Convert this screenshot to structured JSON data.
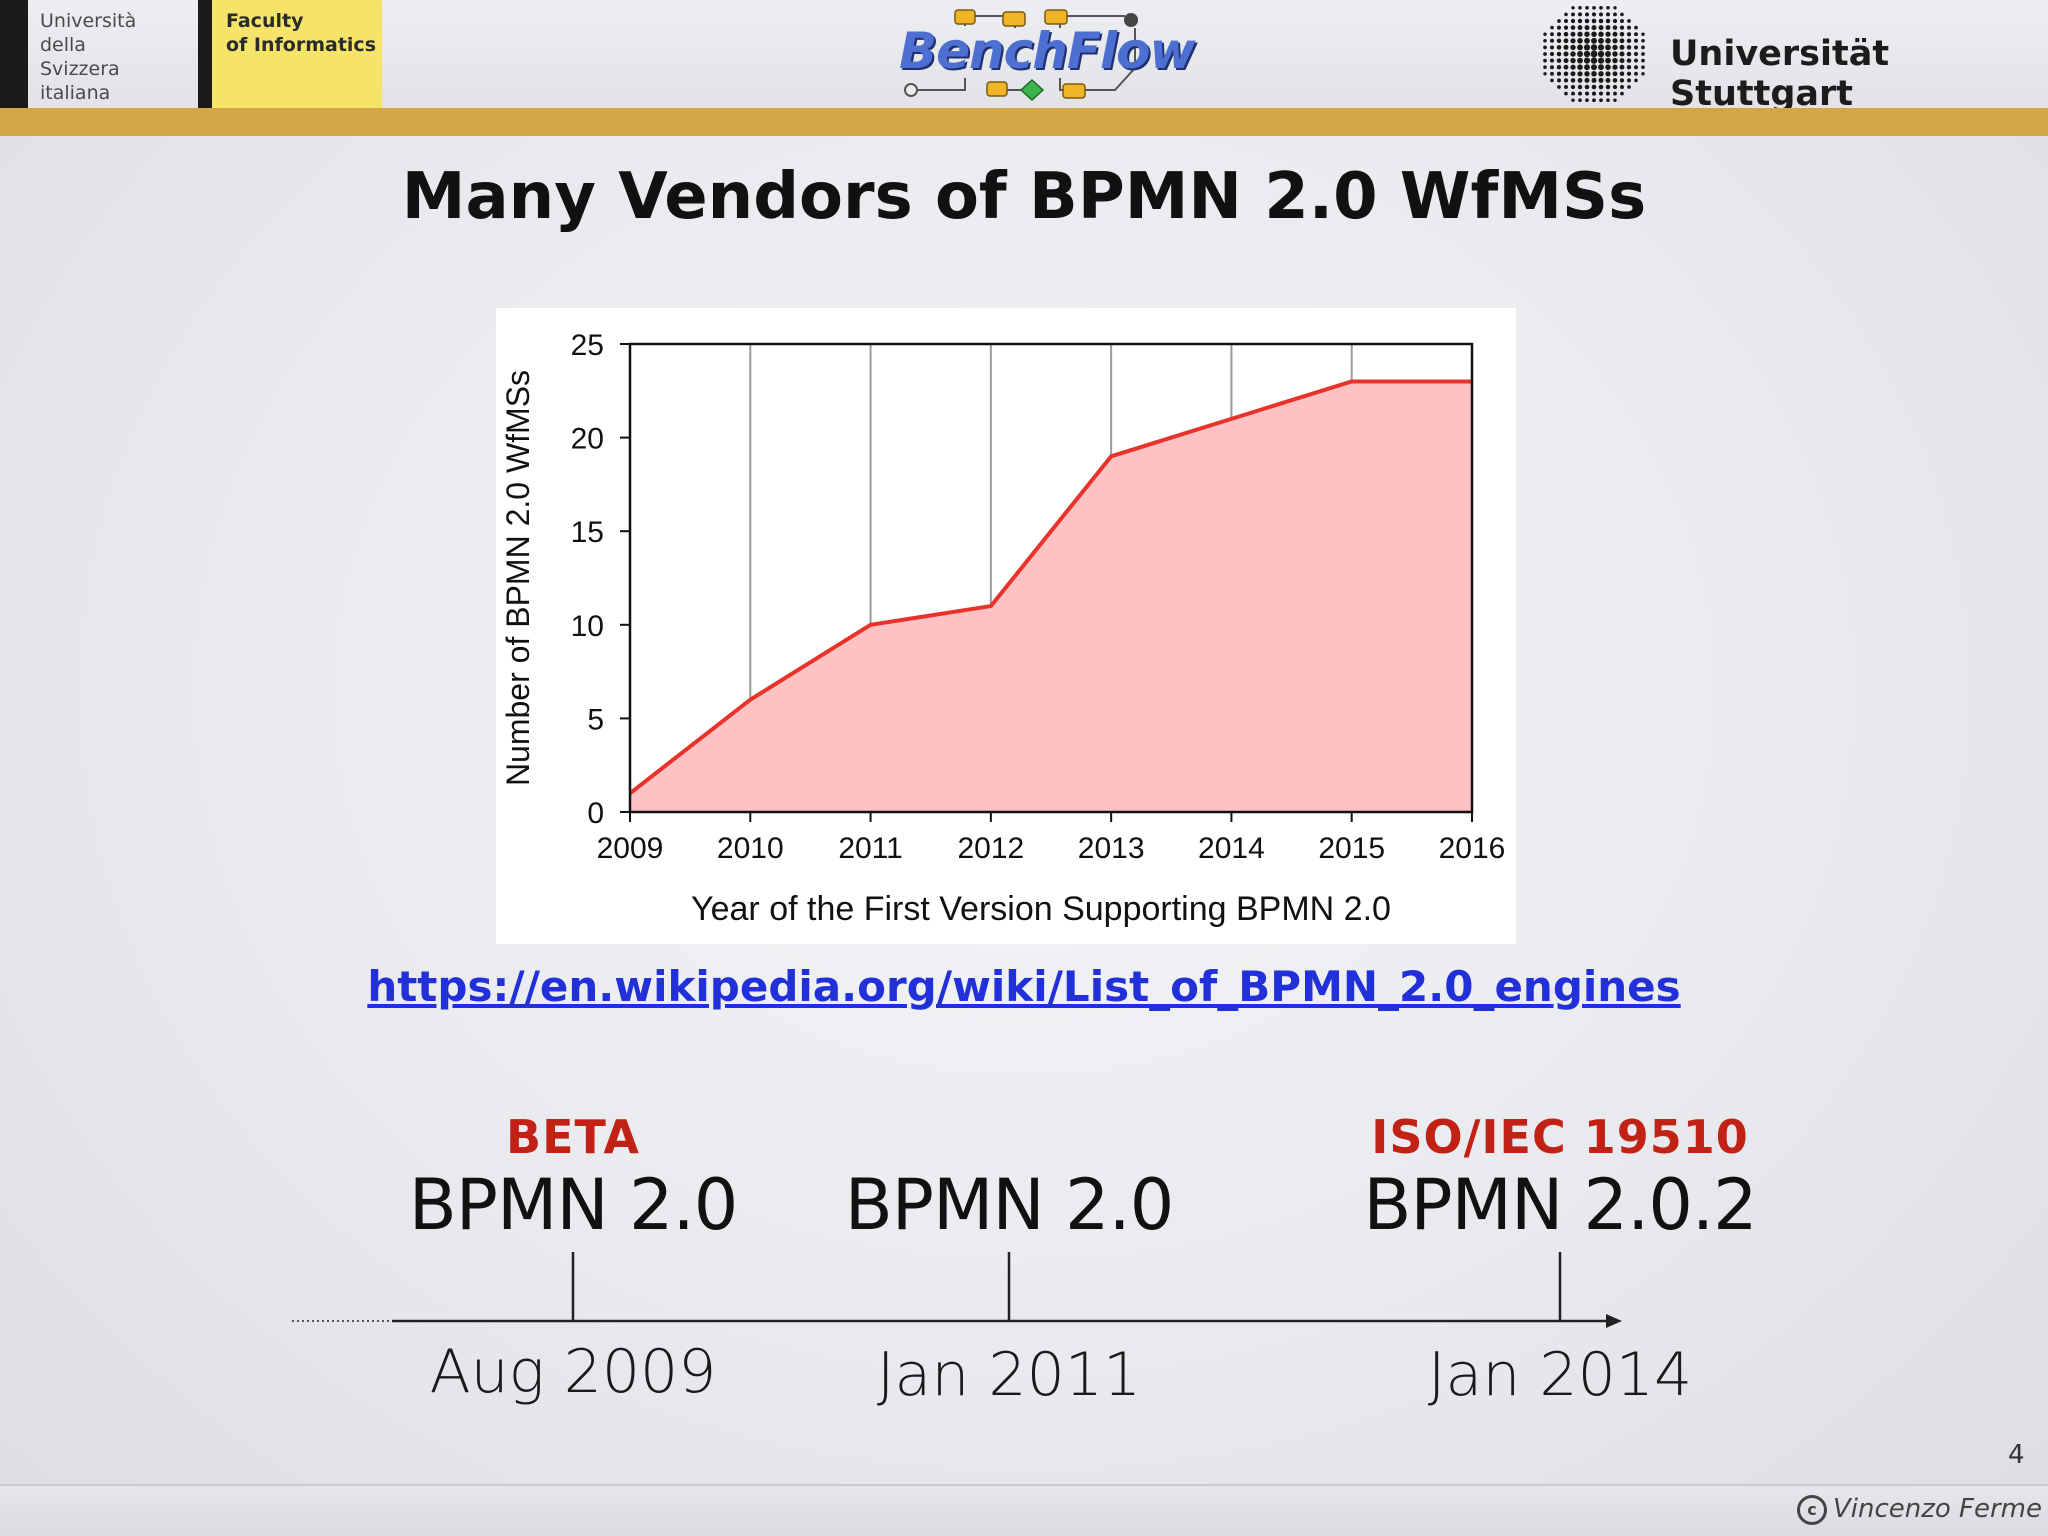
{
  "header": {
    "usi_lines": [
      "Università",
      "della",
      "Svizzera",
      "italiana"
    ],
    "faculty_lines": [
      "Faculty",
      "of Informatics"
    ],
    "benchflow_logo_text": "BenchFlow",
    "stuttgart_name": "Universität Stuttgart"
  },
  "slide": {
    "title": "Many Vendors of BPMN 2.0 WfMSs",
    "link": "https://en.wikipedia.org/wiki/List_of_BPMN_2.0_engines",
    "page_number": "4",
    "author": "Vincenzo Ferme"
  },
  "timeline": [
    {
      "badge": "BETA",
      "version": "BPMN 2.0",
      "date": "Aug 2009"
    },
    {
      "badge": "",
      "version": "BPMN 2.0",
      "date": "Jan 2011"
    },
    {
      "badge": "ISO/IEC 19510",
      "version": "BPMN 2.0.2",
      "date": "Jan 2014"
    }
  ],
  "colors": {
    "gold": "#d3a748",
    "badge_red": "#c22116",
    "link_blue": "#2230d9",
    "line": "#e8332b",
    "fill": "#ffc2c4"
  },
  "chart_data": {
    "type": "area",
    "x": [
      2009,
      2010,
      2011,
      2012,
      2013,
      2014,
      2015,
      2016
    ],
    "series": [
      {
        "values": [
          1,
          6,
          10,
          11,
          19,
          21,
          23,
          23
        ]
      }
    ],
    "xlabel": "Year of the First Version Supporting BPMN 2.0",
    "ylabel": "Number of BPMN 2.0 WfMSs",
    "xlim": [
      2009,
      2016
    ],
    "ylim": [
      0,
      25
    ],
    "yticks": [
      0,
      5,
      10,
      15,
      20,
      25
    ],
    "xticks": [
      2009,
      2010,
      2011,
      2012,
      2013,
      2014,
      2015,
      2016
    ],
    "grid": "vertical"
  }
}
